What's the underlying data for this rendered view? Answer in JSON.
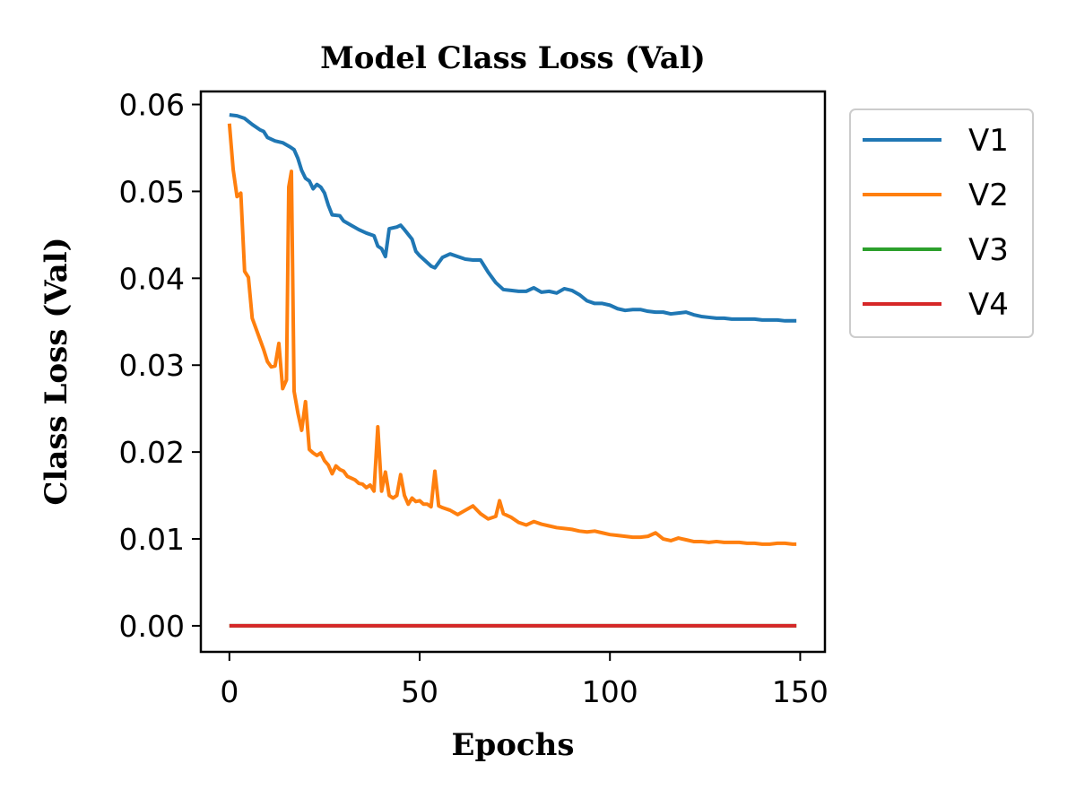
{
  "chart_data": {
    "type": "line",
    "title": "Model Class Loss (Val)",
    "xlabel": "Epochs",
    "ylabel": "Class Loss (Val)",
    "xlim": [
      -7.5,
      156.5
    ],
    "ylim": [
      -0.003,
      0.0615
    ],
    "xticks": [
      0,
      50,
      100,
      150
    ],
    "xtick_labels": [
      "0",
      "50",
      "100",
      "150"
    ],
    "yticks": [
      0.0,
      0.01,
      0.02,
      0.03,
      0.04,
      0.05,
      0.06
    ],
    "ytick_labels": [
      "0.00",
      "0.01",
      "0.02",
      "0.03",
      "0.04",
      "0.05",
      "0.06"
    ],
    "legend_position": "outside-top-right",
    "grid": false,
    "series": [
      {
        "name": "V1",
        "color": "#1f77b4",
        "points": [
          [
            0,
            0.0588
          ],
          [
            2,
            0.0587
          ],
          [
            4,
            0.0584
          ],
          [
            6,
            0.0577
          ],
          [
            8,
            0.0571
          ],
          [
            9,
            0.0569
          ],
          [
            10,
            0.0562
          ],
          [
            12,
            0.0558
          ],
          [
            14,
            0.0556
          ],
          [
            16,
            0.0551
          ],
          [
            17,
            0.0548
          ],
          [
            18,
            0.0538
          ],
          [
            19,
            0.0524
          ],
          [
            20,
            0.0515
          ],
          [
            21,
            0.0512
          ],
          [
            22,
            0.0503
          ],
          [
            23,
            0.0508
          ],
          [
            24,
            0.0505
          ],
          [
            25,
            0.0498
          ],
          [
            26,
            0.0484
          ],
          [
            27,
            0.0473
          ],
          [
            29,
            0.0472
          ],
          [
            30,
            0.0466
          ],
          [
            32,
            0.0461
          ],
          [
            34,
            0.0456
          ],
          [
            36,
            0.0452
          ],
          [
            38,
            0.0449
          ],
          [
            39,
            0.0437
          ],
          [
            40,
            0.0434
          ],
          [
            41,
            0.0425
          ],
          [
            42,
            0.0457
          ],
          [
            44,
            0.0459
          ],
          [
            45,
            0.0461
          ],
          [
            46,
            0.0456
          ],
          [
            48,
            0.0445
          ],
          [
            49,
            0.0431
          ],
          [
            50,
            0.0426
          ],
          [
            52,
            0.0418
          ],
          [
            53,
            0.0414
          ],
          [
            54,
            0.0412
          ],
          [
            56,
            0.0424
          ],
          [
            58,
            0.0428
          ],
          [
            60,
            0.0425
          ],
          [
            62,
            0.0422
          ],
          [
            64,
            0.0421
          ],
          [
            66,
            0.0421
          ],
          [
            68,
            0.0407
          ],
          [
            70,
            0.0395
          ],
          [
            72,
            0.0387
          ],
          [
            74,
            0.0386
          ],
          [
            76,
            0.0385
          ],
          [
            78,
            0.0385
          ],
          [
            80,
            0.0389
          ],
          [
            82,
            0.0384
          ],
          [
            84,
            0.0385
          ],
          [
            86,
            0.0383
          ],
          [
            88,
            0.0388
          ],
          [
            90,
            0.0386
          ],
          [
            92,
            0.0381
          ],
          [
            94,
            0.0374
          ],
          [
            96,
            0.0371
          ],
          [
            98,
            0.0371
          ],
          [
            100,
            0.0369
          ],
          [
            102,
            0.0365
          ],
          [
            104,
            0.0363
          ],
          [
            106,
            0.0364
          ],
          [
            108,
            0.0364
          ],
          [
            110,
            0.0362
          ],
          [
            112,
            0.0361
          ],
          [
            114,
            0.0361
          ],
          [
            116,
            0.0359
          ],
          [
            118,
            0.036
          ],
          [
            120,
            0.0361
          ],
          [
            122,
            0.0358
          ],
          [
            124,
            0.0356
          ],
          [
            126,
            0.0355
          ],
          [
            128,
            0.0354
          ],
          [
            130,
            0.0354
          ],
          [
            132,
            0.0353
          ],
          [
            134,
            0.0353
          ],
          [
            136,
            0.0353
          ],
          [
            138,
            0.0353
          ],
          [
            140,
            0.0352
          ],
          [
            142,
            0.0352
          ],
          [
            144,
            0.0352
          ],
          [
            146,
            0.0351
          ],
          [
            148,
            0.0351
          ],
          [
            149,
            0.0351
          ]
        ]
      },
      {
        "name": "V2",
        "color": "#ff7f0e",
        "points": [
          [
            0,
            0.0578
          ],
          [
            1,
            0.0525
          ],
          [
            2,
            0.0494
          ],
          [
            3,
            0.0498
          ],
          [
            4,
            0.0408
          ],
          [
            5,
            0.0401
          ],
          [
            6,
            0.0354
          ],
          [
            7,
            0.0342
          ],
          [
            8,
            0.033
          ],
          [
            9,
            0.0318
          ],
          [
            10,
            0.0304
          ],
          [
            11,
            0.0298
          ],
          [
            12,
            0.0299
          ],
          [
            13,
            0.0325
          ],
          [
            14,
            0.0273
          ],
          [
            15,
            0.0283
          ],
          [
            15.6,
            0.0505
          ],
          [
            16.3,
            0.0523
          ],
          [
            17,
            0.027
          ],
          [
            18,
            0.0245
          ],
          [
            19,
            0.0225
          ],
          [
            20,
            0.0258
          ],
          [
            21,
            0.0203
          ],
          [
            22,
            0.0199
          ],
          [
            23,
            0.0196
          ],
          [
            24,
            0.0199
          ],
          [
            25,
            0.019
          ],
          [
            26,
            0.0185
          ],
          [
            27,
            0.0175
          ],
          [
            28,
            0.0184
          ],
          [
            29,
            0.018
          ],
          [
            30,
            0.0178
          ],
          [
            31,
            0.0172
          ],
          [
            32,
            0.017
          ],
          [
            33,
            0.0168
          ],
          [
            34,
            0.0164
          ],
          [
            35,
            0.0163
          ],
          [
            36,
            0.0159
          ],
          [
            37,
            0.0162
          ],
          [
            38,
            0.0155
          ],
          [
            39,
            0.0229
          ],
          [
            40,
            0.0155
          ],
          [
            41,
            0.0177
          ],
          [
            42,
            0.015
          ],
          [
            43,
            0.0147
          ],
          [
            44,
            0.015
          ],
          [
            45,
            0.0174
          ],
          [
            46,
            0.015
          ],
          [
            47,
            0.014
          ],
          [
            48,
            0.0147
          ],
          [
            49,
            0.0143
          ],
          [
            50,
            0.0144
          ],
          [
            51,
            0.014
          ],
          [
            52,
            0.014
          ],
          [
            53,
            0.0137
          ],
          [
            54,
            0.0178
          ],
          [
            55,
            0.0138
          ],
          [
            56,
            0.0136
          ],
          [
            58,
            0.0133
          ],
          [
            60,
            0.0128
          ],
          [
            62,
            0.0133
          ],
          [
            64,
            0.0138
          ],
          [
            66,
            0.0129
          ],
          [
            68,
            0.0123
          ],
          [
            70,
            0.0126
          ],
          [
            71,
            0.0144
          ],
          [
            72,
            0.0129
          ],
          [
            74,
            0.0125
          ],
          [
            76,
            0.0119
          ],
          [
            78,
            0.0116
          ],
          [
            80,
            0.012
          ],
          [
            82,
            0.0117
          ],
          [
            84,
            0.0115
          ],
          [
            86,
            0.0113
          ],
          [
            88,
            0.0112
          ],
          [
            90,
            0.0111
          ],
          [
            92,
            0.0109
          ],
          [
            94,
            0.0108
          ],
          [
            96,
            0.0109
          ],
          [
            98,
            0.0107
          ],
          [
            100,
            0.0105
          ],
          [
            102,
            0.0104
          ],
          [
            104,
            0.0103
          ],
          [
            106,
            0.0102
          ],
          [
            108,
            0.0102
          ],
          [
            110,
            0.0103
          ],
          [
            112,
            0.0107
          ],
          [
            114,
            0.01
          ],
          [
            116,
            0.0098
          ],
          [
            118,
            0.0101
          ],
          [
            120,
            0.0099
          ],
          [
            122,
            0.0097
          ],
          [
            124,
            0.0097
          ],
          [
            126,
            0.0096
          ],
          [
            128,
            0.0097
          ],
          [
            130,
            0.0096
          ],
          [
            132,
            0.0096
          ],
          [
            134,
            0.0096
          ],
          [
            136,
            0.0095
          ],
          [
            138,
            0.0095
          ],
          [
            140,
            0.0094
          ],
          [
            142,
            0.0094
          ],
          [
            144,
            0.0095
          ],
          [
            146,
            0.0095
          ],
          [
            148,
            0.0094
          ],
          [
            149,
            0.0094
          ]
        ]
      },
      {
        "name": "V3",
        "color": "#2ca02c",
        "points": [
          [
            0,
            0.0
          ],
          [
            149,
            0.0
          ]
        ]
      },
      {
        "name": "V4",
        "color": "#d62728",
        "points": [
          [
            0,
            0.0
          ],
          [
            149,
            0.0
          ]
        ]
      }
    ]
  }
}
